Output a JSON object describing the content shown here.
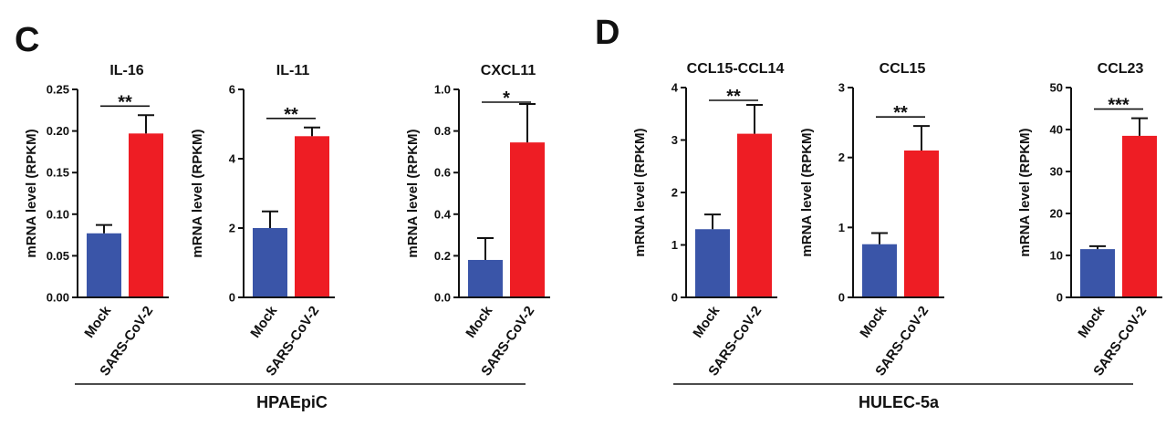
{
  "panels": [
    {
      "letter": "C",
      "group_label": "HPAEpiC"
    },
    {
      "letter": "D",
      "group_label": "HULEC-5a"
    }
  ],
  "colors": {
    "mock": "#3a55a8",
    "sars": "#ee1d24",
    "axis": "#111111"
  },
  "chart_data": [
    {
      "type": "bar",
      "title": "IL-16",
      "ylabel": "mRNA level (RPKM)",
      "categories": [
        "Mock",
        "SARS-CoV-2"
      ],
      "values": [
        0.077,
        0.197
      ],
      "errors": [
        0.01,
        0.022
      ],
      "ylim": [
        0,
        0.25
      ],
      "yticks": [
        "0.00",
        "0.05",
        "0.10",
        "0.15",
        "0.20",
        "0.25"
      ],
      "significance": "**"
    },
    {
      "type": "bar",
      "title": "IL-11",
      "ylabel": "mRNA level (RPKM)",
      "categories": [
        "Mock",
        "SARS-CoV-2"
      ],
      "values": [
        2.0,
        4.65
      ],
      "errors": [
        0.48,
        0.25
      ],
      "ylim": [
        0,
        6
      ],
      "yticks": [
        "0",
        "2",
        "4",
        "6"
      ],
      "significance": "**"
    },
    {
      "type": "bar",
      "title": "CXCL11",
      "ylabel": "mRNA level (RPKM)",
      "categories": [
        "Mock",
        "SARS-CoV-2"
      ],
      "values": [
        0.18,
        0.745
      ],
      "errors": [
        0.105,
        0.185
      ],
      "ylim": [
        0,
        1.0
      ],
      "yticks": [
        "0.0",
        "0.2",
        "0.4",
        "0.6",
        "0.8",
        "1.0"
      ],
      "significance": "*"
    },
    {
      "type": "bar",
      "title": "CCL15-CCL14",
      "ylabel": "mRNA level (RPKM)",
      "categories": [
        "Mock",
        "SARS-CoV-2"
      ],
      "values": [
        1.3,
        3.12
      ],
      "errors": [
        0.28,
        0.55
      ],
      "ylim": [
        0,
        4
      ],
      "yticks": [
        "0",
        "1",
        "2",
        "3",
        "4"
      ],
      "significance": "**"
    },
    {
      "type": "bar",
      "title": "CCL15",
      "ylabel": "mRNA level (RPKM)",
      "categories": [
        "Mock",
        "SARS-CoV-2"
      ],
      "values": [
        0.76,
        2.1
      ],
      "errors": [
        0.16,
        0.35
      ],
      "ylim": [
        0,
        3
      ],
      "yticks": [
        "0",
        "1",
        "2",
        "3"
      ],
      "significance": "**"
    },
    {
      "type": "bar",
      "title": "CCL23",
      "ylabel": "mRNA level (RPKM)",
      "categories": [
        "Mock",
        "SARS-CoV-2"
      ],
      "values": [
        11.5,
        38.5
      ],
      "errors": [
        0.7,
        4.2
      ],
      "ylim": [
        0,
        50
      ],
      "yticks": [
        "0",
        "10",
        "20",
        "30",
        "40",
        "50"
      ],
      "significance": "***"
    }
  ]
}
